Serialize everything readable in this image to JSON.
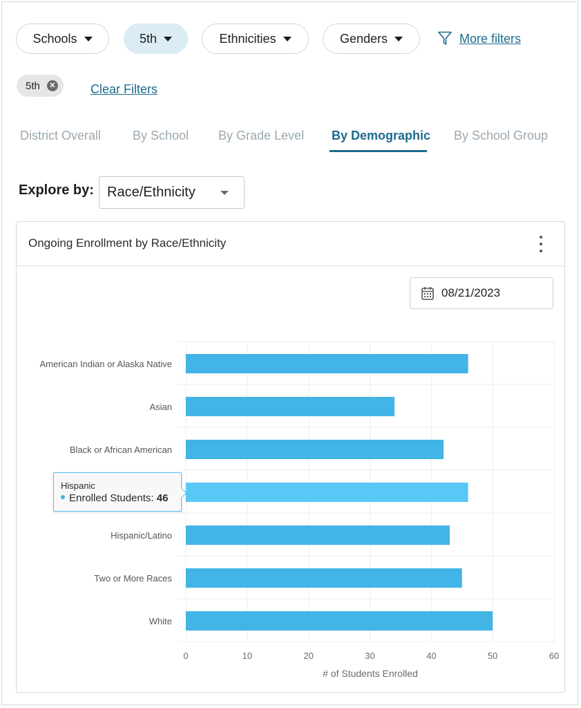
{
  "filters": {
    "schools": "Schools",
    "grade": "5th",
    "ethnicities": "Ethnicities",
    "genders": "Genders",
    "more_filters": "More filters"
  },
  "active_chips": [
    "5th"
  ],
  "clear_filters": "Clear Filters",
  "tabs": [
    {
      "label": "District Overall",
      "active": false
    },
    {
      "label": "By School",
      "active": false
    },
    {
      "label": "By Grade Level",
      "active": false
    },
    {
      "label": "By Demographic",
      "active": true
    },
    {
      "label": "By School Group",
      "active": false
    }
  ],
  "explore": {
    "label": "Explore by:",
    "value": "Race/Ethnicity"
  },
  "card": {
    "title": "Ongoing Enrollment by Race/Ethnicity",
    "date": "08/21/2023"
  },
  "colors": {
    "accent": "#1d6a8d",
    "bar": "#42b4e6",
    "bar_highlight": "#59c8f7",
    "chip_bg": "#e4e6e8"
  },
  "icons": {
    "filter": "filter-icon",
    "calendar": "calendar-icon",
    "more": "kebab-menu-icon",
    "chip_close": "close-circle-icon"
  },
  "chart_data": {
    "type": "bar",
    "orientation": "horizontal",
    "categories": [
      "American Indian or Alaska Native",
      "Asian",
      "Black or African American",
      "Hispanic",
      "Hispanic/Latino",
      "Two or More Races",
      "White"
    ],
    "series": [
      {
        "values": [
          46,
          34,
          42,
          46,
          43,
          45,
          50
        ]
      }
    ],
    "xlabel": "# of Students Enrolled",
    "ylabel": "",
    "xlim": [
      0,
      60
    ],
    "xticks": [
      0,
      10,
      20,
      30,
      40,
      50,
      60
    ],
    "grid": true,
    "highlighted": "Hispanic",
    "tooltip": {
      "title": "Hispanic",
      "label": "Enrolled Students:",
      "value": "46"
    }
  }
}
